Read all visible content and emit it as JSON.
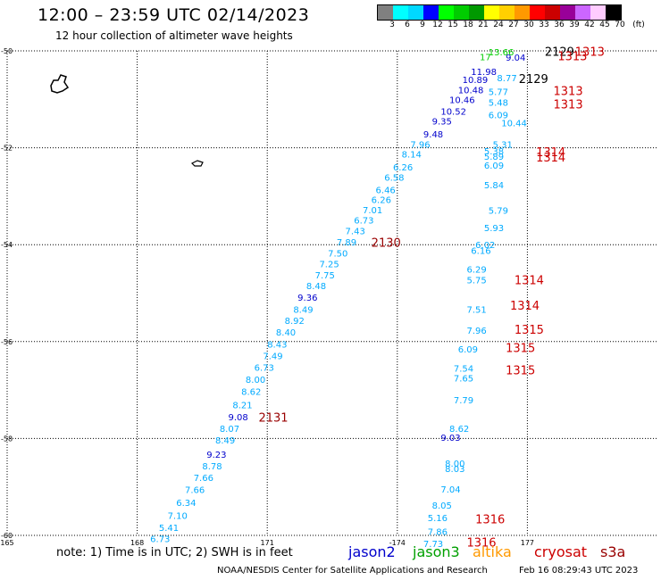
{
  "header": {
    "title": "12:00 – 23:59 UTC 02/14/2023",
    "subtitle": "12 hour collection of altimeter wave heights"
  },
  "colorbar": {
    "colors": [
      "#808080",
      "#00ffff",
      "#00d8ff",
      "#0000ff",
      "#00ff00",
      "#00cc00",
      "#009900",
      "#ffff00",
      "#ffd000",
      "#ff9900",
      "#ff0000",
      "#cc0000",
      "#990099",
      "#cc66ff",
      "#ffccff",
      "#000000"
    ],
    "labels": [
      "3",
      "6",
      "9",
      "12",
      "15",
      "18",
      "21",
      "24",
      "27",
      "30",
      "33",
      "36",
      "39",
      "42",
      "45",
      "70",
      "(ft)"
    ]
  },
  "chart_data": {
    "type": "map",
    "lat_ticks": [
      "-50",
      "-52",
      "-54",
      "-56",
      "-58",
      "-60"
    ],
    "lon_ticks": [
      "165",
      "168",
      "171",
      "-174",
      "177"
    ],
    "lat_range": [
      -60,
      -50
    ],
    "lon_range_east": [
      165,
      180
    ],
    "grid": "dotted",
    "labels": [
      {
        "t": "10.44",
        "lon": 176.4,
        "lat": -51.48,
        "c": "#00aaff"
      },
      {
        "t": "9.04",
        "lon": 176.5,
        "lat": -50.13,
        "c": "#0000cc"
      },
      {
        "t": "13.66",
        "lon": 176.1,
        "lat": -50.02,
        "c": "#00cc00"
      },
      {
        "t": "17",
        "lon": 175.9,
        "lat": -50.12,
        "c": "#00cc00"
      },
      {
        "t": "2129",
        "lon": 177.4,
        "lat": -50.03,
        "c": "#000000"
      },
      {
        "t": "1313",
        "lon": 178.1,
        "lat": -50.03,
        "c": "#cc0000"
      },
      {
        "t": "1313",
        "lon": 177.7,
        "lat": -50.12,
        "c": "#cc0000"
      },
      {
        "t": "11.98",
        "lon": 175.7,
        "lat": -50.42,
        "c": "#0000cc"
      },
      {
        "t": "10.89",
        "lon": 175.5,
        "lat": -50.59,
        "c": "#0000cc"
      },
      {
        "t": "8.77",
        "lon": 176.3,
        "lat": -50.55,
        "c": "#00aaff"
      },
      {
        "t": "2129",
        "lon": 176.8,
        "lat": -50.59,
        "c": "#000000"
      },
      {
        "t": "10.48",
        "lon": 175.4,
        "lat": -50.8,
        "c": "#0000cc"
      },
      {
        "t": "5.77",
        "lon": 176.1,
        "lat": -50.84,
        "c": "#00aaff"
      },
      {
        "t": "1313",
        "lon": 177.6,
        "lat": -50.84,
        "c": "#cc0000"
      },
      {
        "t": "10.46",
        "lon": 175.2,
        "lat": -51.0,
        "c": "#0000cc"
      },
      {
        "t": "5.48",
        "lon": 176.1,
        "lat": -51.06,
        "c": "#00aaff"
      },
      {
        "t": "1313",
        "lon": 177.6,
        "lat": -51.11,
        "c": "#cc0000"
      },
      {
        "t": "10.52",
        "lon": 175.0,
        "lat": -51.24,
        "c": "#0000cc"
      },
      {
        "t": "6.09",
        "lon": 176.1,
        "lat": -51.32,
        "c": "#00aaff"
      },
      {
        "t": "9.35",
        "lon": 174.8,
        "lat": -51.45,
        "c": "#0000cc"
      },
      {
        "t": "9.48",
        "lon": 174.6,
        "lat": -51.71,
        "c": "#0000cc"
      },
      {
        "t": "7.96",
        "lon": 174.3,
        "lat": -51.92,
        "c": "#00aaff"
      },
      {
        "t": "5.31",
        "lon": 176.2,
        "lat": -51.92,
        "c": "#00aaff"
      },
      {
        "t": "1314",
        "lon": 177.2,
        "lat": -52.1,
        "c": "#cc0000"
      },
      {
        "t": "8.14",
        "lon": 174.1,
        "lat": -52.13,
        "c": "#00aaff"
      },
      {
        "t": "5.38",
        "lon": 176.0,
        "lat": -52.06,
        "c": "#00aaff"
      },
      {
        "t": "5.89",
        "lon": 176.0,
        "lat": -52.17,
        "c": "#00aaff"
      },
      {
        "t": "1314",
        "lon": 177.2,
        "lat": -52.21,
        "c": "#cc0000"
      },
      {
        "t": "6.26",
        "lon": 173.9,
        "lat": -52.39,
        "c": "#00aaff"
      },
      {
        "t": "6.09",
        "lon": 176.0,
        "lat": -52.36,
        "c": "#00aaff"
      },
      {
        "t": "6.58",
        "lon": 173.7,
        "lat": -52.61,
        "c": "#00aaff"
      },
      {
        "t": "5.84",
        "lon": 176.0,
        "lat": -52.76,
        "c": "#00aaff"
      },
      {
        "t": "6.46",
        "lon": 173.5,
        "lat": -52.86,
        "c": "#00aaff"
      },
      {
        "t": "6.26",
        "lon": 173.4,
        "lat": -53.07,
        "c": "#00aaff"
      },
      {
        "t": "7.01",
        "lon": 173.2,
        "lat": -53.28,
        "c": "#00aaff"
      },
      {
        "t": "5.79",
        "lon": 176.1,
        "lat": -53.29,
        "c": "#00aaff"
      },
      {
        "t": "6.73",
        "lon": 173.0,
        "lat": -53.49,
        "c": "#00aaff"
      },
      {
        "t": "7.43",
        "lon": 172.8,
        "lat": -53.71,
        "c": "#00aaff"
      },
      {
        "t": "5.93",
        "lon": 176.0,
        "lat": -53.65,
        "c": "#00aaff"
      },
      {
        "t": "7.89",
        "lon": 172.6,
        "lat": -53.94,
        "c": "#00aaff"
      },
      {
        "t": "2130",
        "lon": 173.4,
        "lat": -53.97,
        "c": "#990000"
      },
      {
        "t": "6.02",
        "lon": 175.8,
        "lat": -54.0,
        "c": "#00aaff"
      },
      {
        "t": "7.50",
        "lon": 172.4,
        "lat": -54.17,
        "c": "#00aaff"
      },
      {
        "t": "6.16",
        "lon": 175.7,
        "lat": -54.12,
        "c": "#00aaff"
      },
      {
        "t": "7.25",
        "lon": 172.2,
        "lat": -54.39,
        "c": "#00aaff"
      },
      {
        "t": "6.29",
        "lon": 175.6,
        "lat": -54.5,
        "c": "#00aaff"
      },
      {
        "t": "7.75",
        "lon": 172.1,
        "lat": -54.62,
        "c": "#00aaff"
      },
      {
        "t": "5.75",
        "lon": 175.6,
        "lat": -54.72,
        "c": "#00aaff"
      },
      {
        "t": "1314",
        "lon": 176.7,
        "lat": -54.74,
        "c": "#cc0000"
      },
      {
        "t": "8.48",
        "lon": 171.9,
        "lat": -54.84,
        "c": "#00aaff"
      },
      {
        "t": "9.36",
        "lon": 171.7,
        "lat": -55.08,
        "c": "#0000cc"
      },
      {
        "t": "8.49",
        "lon": 171.6,
        "lat": -55.33,
        "c": "#00aaff"
      },
      {
        "t": "7.51",
        "lon": 175.6,
        "lat": -55.33,
        "c": "#00aaff"
      },
      {
        "t": "1314",
        "lon": 176.6,
        "lat": -55.27,
        "c": "#cc0000"
      },
      {
        "t": "8.92",
        "lon": 171.4,
        "lat": -55.56,
        "c": "#00aaff"
      },
      {
        "t": "8.40",
        "lon": 171.2,
        "lat": -55.8,
        "c": "#00aaff"
      },
      {
        "t": "7.96",
        "lon": 175.6,
        "lat": -55.76,
        "c": "#00aaff"
      },
      {
        "t": "1315",
        "lon": 176.7,
        "lat": -55.76,
        "c": "#cc0000"
      },
      {
        "t": "8.43",
        "lon": 171.0,
        "lat": -56.05,
        "c": "#00aaff"
      },
      {
        "t": "6.09",
        "lon": 175.4,
        "lat": -56.15,
        "c": "#00aaff"
      },
      {
        "t": "1315",
        "lon": 176.5,
        "lat": -56.14,
        "c": "#cc0000"
      },
      {
        "t": "7.49",
        "lon": 170.9,
        "lat": -56.29,
        "c": "#00aaff"
      },
      {
        "t": "6.73",
        "lon": 170.7,
        "lat": -56.53,
        "c": "#00aaff"
      },
      {
        "t": "7.54",
        "lon": 175.3,
        "lat": -56.55,
        "c": "#00aaff"
      },
      {
        "t": "1315",
        "lon": 176.5,
        "lat": -56.6,
        "c": "#cc0000"
      },
      {
        "t": "8.00",
        "lon": 170.5,
        "lat": -56.78,
        "c": "#00aaff"
      },
      {
        "t": "7.65",
        "lon": 175.3,
        "lat": -56.75,
        "c": "#00aaff"
      },
      {
        "t": "8.62",
        "lon": 170.4,
        "lat": -57.03,
        "c": "#00aaff"
      },
      {
        "t": "7.79",
        "lon": 175.3,
        "lat": -57.2,
        "c": "#00aaff"
      },
      {
        "t": "8.21",
        "lon": 170.2,
        "lat": -57.3,
        "c": "#00aaff"
      },
      {
        "t": "9.08",
        "lon": 170.1,
        "lat": -57.55,
        "c": "#0000cc"
      },
      {
        "t": "2131",
        "lon": 170.8,
        "lat": -57.58,
        "c": "#990000"
      },
      {
        "t": "8.07",
        "lon": 169.9,
        "lat": -57.79,
        "c": "#00aaff"
      },
      {
        "t": "8.62",
        "lon": 175.2,
        "lat": -57.79,
        "c": "#00aaff"
      },
      {
        "t": "8.49",
        "lon": 169.8,
        "lat": -58.03,
        "c": "#00aaff"
      },
      {
        "t": "9.03",
        "lon": 175.0,
        "lat": -57.97,
        "c": "#0000cc"
      },
      {
        "t": "9.23",
        "lon": 169.6,
        "lat": -58.32,
        "c": "#0000cc"
      },
      {
        "t": "8.78",
        "lon": 169.5,
        "lat": -58.56,
        "c": "#00aaff"
      },
      {
        "t": "8.00",
        "lon": 175.1,
        "lat": -58.51,
        "c": "#00aaff"
      },
      {
        "t": "8.03",
        "lon": 175.1,
        "lat": -58.62,
        "c": "#00aaff"
      },
      {
        "t": "7.66",
        "lon": 169.3,
        "lat": -58.8,
        "c": "#00aaff"
      },
      {
        "t": "7.66",
        "lon": 169.1,
        "lat": -59.05,
        "c": "#00aaff"
      },
      {
        "t": "7.04",
        "lon": 175.0,
        "lat": -59.04,
        "c": "#00aaff"
      },
      {
        "t": "6.34",
        "lon": 168.9,
        "lat": -59.32,
        "c": "#00aaff"
      },
      {
        "t": "8.05",
        "lon": 174.8,
        "lat": -59.37,
        "c": "#00aaff"
      },
      {
        "t": "7.10",
        "lon": 168.7,
        "lat": -59.59,
        "c": "#00aaff"
      },
      {
        "t": "5.16",
        "lon": 174.7,
        "lat": -59.63,
        "c": "#00aaff"
      },
      {
        "t": "1316",
        "lon": 175.8,
        "lat": -59.68,
        "c": "#cc0000"
      },
      {
        "t": "5.41",
        "lon": 168.5,
        "lat": -59.83,
        "c": "#00aaff"
      },
      {
        "t": "7.86",
        "lon": 174.7,
        "lat": -59.92,
        "c": "#00aaff"
      },
      {
        "t": "6.73",
        "lon": 168.3,
        "lat": -60.06,
        "c": "#00aaff"
      },
      {
        "t": "7.73",
        "lon": 174.6,
        "lat": -60.17,
        "c": "#00aaff"
      },
      {
        "t": "1316",
        "lon": 175.6,
        "lat": -60.16,
        "c": "#cc0000"
      }
    ]
  },
  "footer": {
    "note": "note:  1) Time is in UTC; 2) SWH is in feet",
    "satellites": [
      {
        "name": "jason2",
        "color": "#0000cc"
      },
      {
        "name": "jason3",
        "color": "#00a000"
      },
      {
        "name": "altika",
        "color": "#ff9900"
      },
      {
        "name": "cryosat",
        "color": "#cc0000"
      },
      {
        "name": "s3a",
        "color": "#990000"
      }
    ],
    "credit": "NOAA/NESDIS Center for Satellite Applications and Research",
    "stamp": "Feb 16 08:29:43 UTC 2023"
  }
}
